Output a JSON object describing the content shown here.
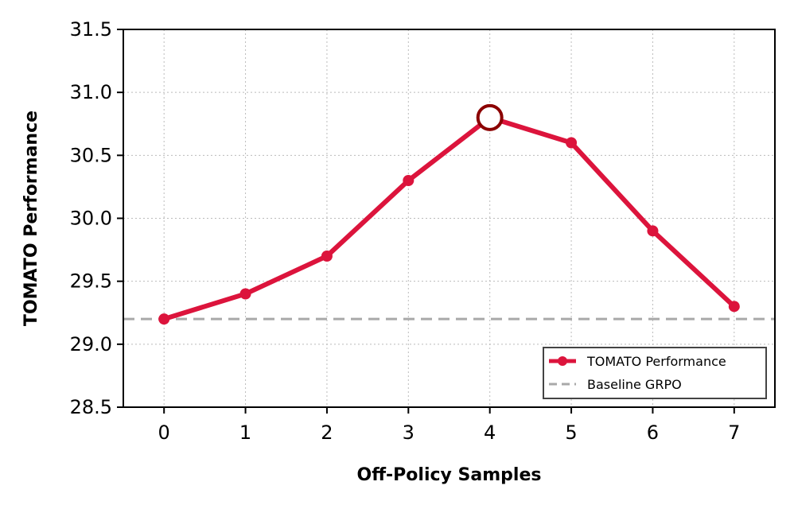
{
  "chart_data": {
    "type": "line",
    "xlabel": "Off-Policy Samples",
    "ylabel": "TOMATO Performance",
    "x": [
      0,
      1,
      2,
      3,
      4,
      5,
      6,
      7
    ],
    "xlim": [
      -0.5,
      7.5
    ],
    "ylim": [
      28.5,
      31.5
    ],
    "xticks": [
      "0",
      "1",
      "2",
      "3",
      "4",
      "5",
      "6",
      "7"
    ],
    "yticks": [
      "28.5",
      "29.0",
      "29.5",
      "30.0",
      "30.5",
      "31.0",
      "31.5"
    ],
    "grid": true,
    "legend_position": "lower-right",
    "series": [
      {
        "name": "TOMATO Performance",
        "values": [
          29.2,
          29.4,
          29.7,
          30.3,
          30.8,
          30.6,
          29.9,
          29.3
        ],
        "color": "#dc143c",
        "highlight_index": 4,
        "highlight_color": "#8b0000"
      }
    ],
    "baselines": [
      {
        "name": "Baseline GRPO",
        "value": 29.2,
        "color": "#a9a9a9",
        "style": "dashed"
      }
    ]
  }
}
